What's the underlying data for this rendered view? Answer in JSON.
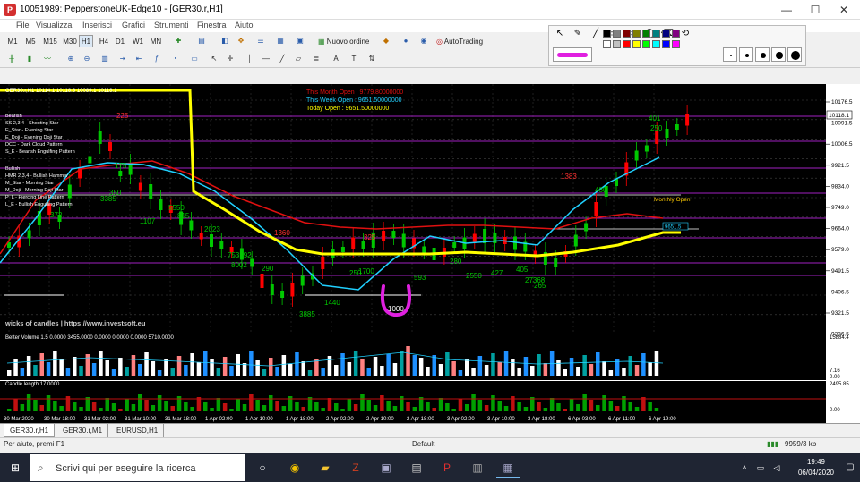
{
  "window": {
    "title": "10051989: PepperstoneUK-Edge10 - [GER30.r,H1]",
    "app_icon_label": "P",
    "minimize": "—",
    "maximize": "☐",
    "close": "✕"
  },
  "menu": [
    "File",
    "Visualizza",
    "Inserisci",
    "Grafici",
    "Strumenti",
    "Finestra",
    "Aiuto"
  ],
  "toolbar": {
    "timeframes": [
      "M1",
      "M5",
      "M15",
      "M30",
      "H1",
      "H4",
      "D1",
      "W1",
      "MN"
    ],
    "active_timeframe": "H1",
    "new_order_label": "Nuovo ordine",
    "autotrading_label": "AutoTrading"
  },
  "chart": {
    "symbol_header": "GER30.r,H1  10114.1 10118.8 10089.1 10118.1",
    "this_month_open": "This Month Open  :  9779.80000000",
    "this_week_open": "This Week Open    :  9651.50000000",
    "today_open": "Today Open          :  9651.50000000",
    "watermark": "wicks of candles | https://www.investsoft.eu",
    "current_price_label": "10118.1",
    "monthly_open_label": "Monthly Open",
    "weekly_open_label": "9651.5",
    "handwritten_value": "1000",
    "bearish_legend": [
      "Bearish",
      "SS 2,3,4 - Shooting Star",
      "E_Star   - Evening Star",
      "E_Doji   - Evening Doji Star",
      "DCC      - Dark Cloud Pattern",
      "S_E       - Bearish Engulfing Pattern"
    ],
    "bullish_legend": [
      "Bullish",
      "HMR 2,3,4 - Bullish Hammer",
      "M_Star   - Morning Star",
      "M_Doji   - Morning Doji Star",
      "P_L        - Piercing Line Pattern",
      "L_E        - Bullish Engulfing Pattern"
    ],
    "price_labels": [
      "10176.5",
      "10091.5",
      "10006.5",
      "9921.5",
      "9834.0",
      "9749.0",
      "9664.0",
      "9579.0",
      "9491.5",
      "9406.5",
      "9321.5",
      "9236.5"
    ],
    "volume_header": "Better Volume 1.5 0.0000 3455.0000 0.0000 0.0000 0.0000 5710.0000",
    "volume_labels": [
      "15884.4",
      "7.16",
      "0.00"
    ],
    "candle_header": "Candle length 17.0000",
    "candle_labels": [
      "2495.85",
      "0.00"
    ],
    "time_labels": [
      "30 Mar 2020",
      "30 Mar 18:00",
      "31 Mar 02:00",
      "31 Mar 10:00",
      "31 Mar 18:00",
      "1 Apr 02:00",
      "1 Apr 10:00",
      "1 Apr 18:00",
      "2 Apr 02:00",
      "2 Apr 10:00",
      "2 Apr 18:00",
      "3 Apr 02:00",
      "3 Apr 10:00",
      "3 Apr 18:00",
      "6 Apr 03:00",
      "6 Apr 11:00",
      "6 Apr 19:00"
    ],
    "candle_numbers": [
      "225",
      "175",
      "350",
      "3385",
      "372",
      "1107",
      "815",
      "5550",
      "2023",
      "753592",
      "8002",
      "290",
      "1360",
      "3885",
      "1440",
      "250",
      "325",
      "1700",
      "593",
      "280",
      "2550",
      "427",
      "405",
      "27368",
      "265",
      "1383",
      "480",
      "250",
      "401"
    ]
  },
  "bottom_tabs": [
    "GER30.r,H1",
    "GER30.r,M1",
    "EURUSD,H1"
  ],
  "status": {
    "help": "Per aiuto, premi F1",
    "profile": "Default",
    "traffic": "9959/3 kb"
  },
  "taskbar": {
    "search_placeholder": "Scrivi qui per eseguire la ricerca",
    "time": "19:49",
    "date": "06/04/2020"
  },
  "colors": {
    "chart_bg": "#000000",
    "bull_candle": "#00c800",
    "bear_candle": "#ff0000",
    "ma_yellow": "#ffff00",
    "ma_cyan": "#20d0ff",
    "ma_red": "#e01010",
    "level_purple": "#a020c0",
    "handwriting": "#e020e0"
  }
}
